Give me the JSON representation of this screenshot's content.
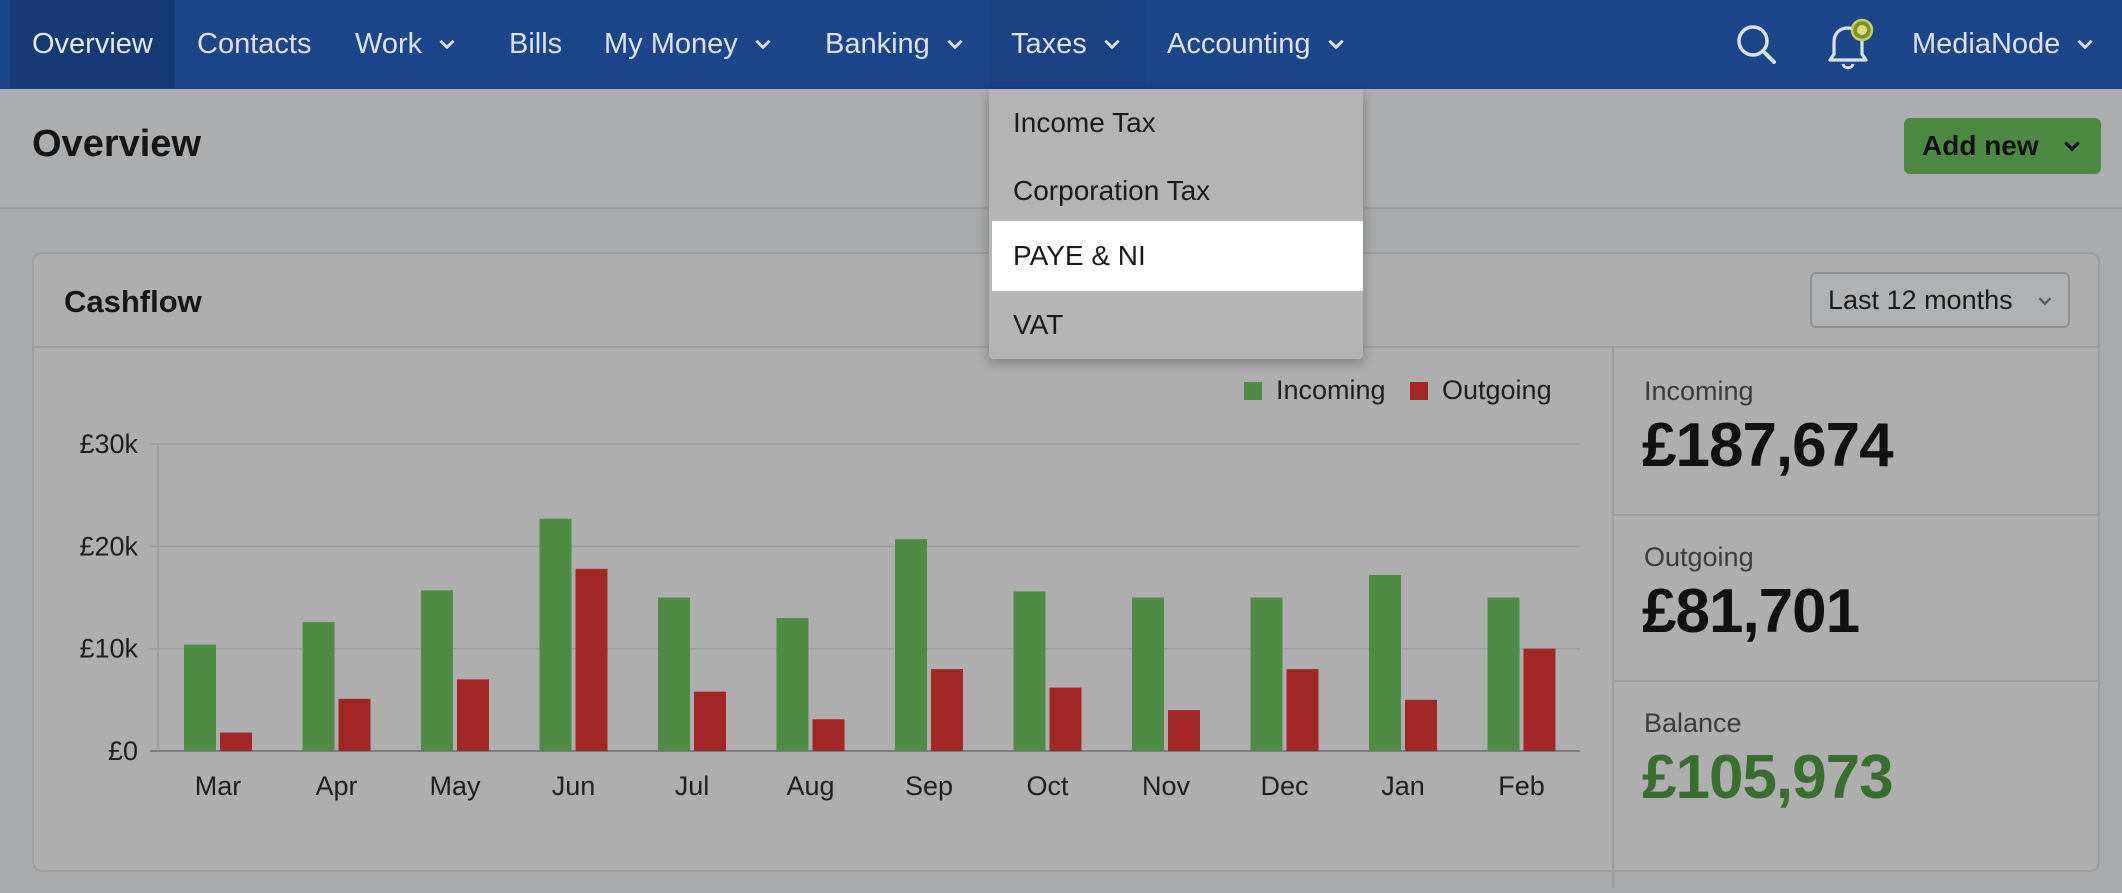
{
  "nav": {
    "items": [
      {
        "label": "Overview"
      },
      {
        "label": "Contacts"
      },
      {
        "label": "Work"
      },
      {
        "label": "Bills"
      },
      {
        "label": "My Money"
      },
      {
        "label": "Banking"
      },
      {
        "label": "Taxes"
      },
      {
        "label": "Accounting"
      }
    ],
    "icons": [
      "search-icon",
      "bell-icon"
    ],
    "account": "MediaNode"
  },
  "taxes_menu": {
    "items": [
      {
        "label": "Income Tax"
      },
      {
        "label": "Corporation Tax"
      },
      {
        "label": "PAYE & NI"
      },
      {
        "label": "VAT"
      }
    ],
    "hovered": "PAYE & NI"
  },
  "page": {
    "title": "Overview",
    "add_new_label": "Add new"
  },
  "cashflow": {
    "title": "Cashflow",
    "period": "Last 12 months",
    "stats": {
      "incoming_label": "Incoming",
      "incoming_value": "£187,674",
      "outgoing_label": "Outgoing",
      "outgoing_value": "£81,701",
      "balance_label": "Balance",
      "balance_value": "£105,973"
    }
  },
  "colors": {
    "nav_bg": "#1b468a",
    "incoming": "#4e8c43",
    "outgoing": "#a12624",
    "balance": "#386e2e",
    "add_button": "#4c8a41"
  },
  "chart_data": {
    "type": "bar",
    "categories": [
      "Mar",
      "Apr",
      "May",
      "Jun",
      "Jul",
      "Aug",
      "Sep",
      "Oct",
      "Nov",
      "Dec",
      "Jan",
      "Feb"
    ],
    "series": [
      {
        "name": "Incoming",
        "values": [
          10400,
          12600,
          15700,
          22700,
          15000,
          13000,
          20700,
          15600,
          15000,
          15000,
          17200,
          15000
        ]
      },
      {
        "name": "Outgoing",
        "values": [
          1800,
          5100,
          7000,
          17800,
          5800,
          3100,
          8000,
          6200,
          4000,
          8000,
          5000,
          10000
        ]
      }
    ],
    "yticks": [
      "£0",
      "£10k",
      "£20k",
      "£30k"
    ],
    "ylim": [
      0,
      30000
    ],
    "grid": true,
    "legend": "top-right",
    "title": "",
    "xlabel": "",
    "ylabel": ""
  }
}
